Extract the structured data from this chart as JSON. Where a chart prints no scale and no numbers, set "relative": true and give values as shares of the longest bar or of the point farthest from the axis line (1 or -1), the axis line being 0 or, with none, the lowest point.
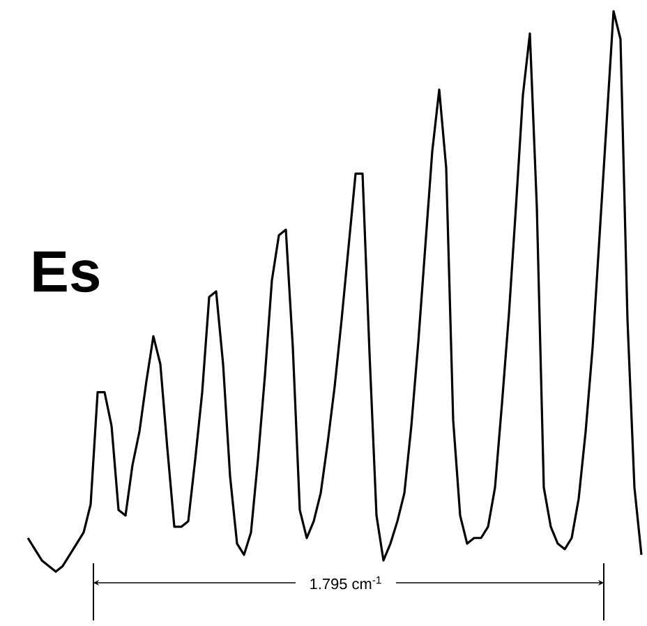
{
  "chart_data": {
    "type": "line",
    "title": "Es",
    "relative": true,
    "categories": [
      null,
      null,
      null,
      null,
      null,
      null,
      null,
      null,
      null,
      null,
      null,
      null,
      null,
      null,
      null,
      null,
      null,
      null,
      null,
      null,
      null,
      null,
      null,
      null,
      null,
      null,
      null,
      null,
      null,
      null,
      null,
      null,
      null,
      null,
      null,
      null,
      null,
      null,
      null,
      null,
      null,
      null,
      null,
      null,
      null,
      null,
      null,
      null,
      null,
      null,
      null,
      null,
      null,
      null,
      null,
      null,
      null,
      null,
      null,
      null,
      null,
      null,
      null,
      null,
      null,
      null,
      null,
      null,
      null,
      null,
      null,
      null,
      null,
      null,
      null,
      null,
      null,
      null,
      null,
      null,
      null,
      null,
      null,
      null,
      null,
      null,
      null,
      null,
      null
    ],
    "series": [
      {
        "color": "#000000",
        "line_style": "solid",
        "values": [
          0.06,
          0.04,
          0.02,
          0.01,
          0.0,
          0.01,
          0.03,
          0.05,
          0.07,
          0.12,
          0.32,
          0.32,
          0.26,
          0.11,
          0.1,
          0.19,
          0.25,
          0.34,
          0.42,
          0.37,
          0.22,
          0.08,
          0.08,
          0.09,
          0.2,
          0.32,
          0.49,
          0.5,
          0.37,
          0.17,
          0.05,
          0.03,
          0.07,
          0.2,
          0.35,
          0.52,
          0.6,
          0.61,
          0.4,
          0.11,
          0.06,
          0.09,
          0.14,
          0.23,
          0.33,
          0.45,
          0.58,
          0.71,
          0.71,
          0.39,
          0.1,
          0.02,
          0.05,
          0.09,
          0.14,
          0.26,
          0.41,
          0.58,
          0.75,
          0.86,
          0.72,
          0.27,
          0.1,
          0.05,
          0.06,
          0.06,
          0.08,
          0.15,
          0.3,
          0.46,
          0.65,
          0.85,
          0.96,
          0.65,
          0.15,
          0.08,
          0.05,
          0.04,
          0.06,
          0.13,
          0.25,
          0.4,
          0.6,
          0.8,
          1.0,
          0.95,
          0.45,
          0.15,
          0.03
        ]
      }
    ],
    "annotations": [
      "1.795 cm$^{-1}$"
    ],
    "marker": "none"
  }
}
